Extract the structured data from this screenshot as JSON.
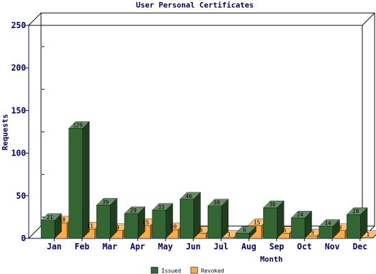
{
  "chart_data": {
    "type": "bar",
    "title": "User Personal Certificates",
    "xlabel": "Month",
    "ylabel": "Requests",
    "categories": [
      "Jan",
      "Feb",
      "Mar",
      "Apr",
      "May",
      "Jun",
      "Jul",
      "Aug",
      "Sep",
      "Oct",
      "Nov",
      "Dec"
    ],
    "yticks": [
      "0",
      "50",
      "100",
      "150",
      "200",
      "250"
    ],
    "ylim": [
      0,
      250
    ],
    "grid": false,
    "legend_position": "bottom",
    "series": [
      {
        "name": "Issued",
        "color": "#336633",
        "values": [
          21,
          129,
          39,
          29,
          33,
          46,
          38,
          6,
          36,
          24,
          14,
          28
        ],
        "labels": [
          "21",
          "129",
          "39",
          "29",
          "33",
          "46",
          "38",
          "6",
          "36",
          "24",
          "14",
          "28"
        ]
      },
      {
        "name": "Revoked",
        "color": "#FFAA44",
        "values": [
          18,
          11,
          9,
          15,
          10,
          6,
          1,
          15,
          6,
          3,
          9,
          1
        ],
        "labels": [
          "18",
          "11",
          "9",
          "15",
          "10",
          "6",
          "1",
          "15",
          "6",
          "3",
          "9",
          "1"
        ]
      }
    ]
  }
}
